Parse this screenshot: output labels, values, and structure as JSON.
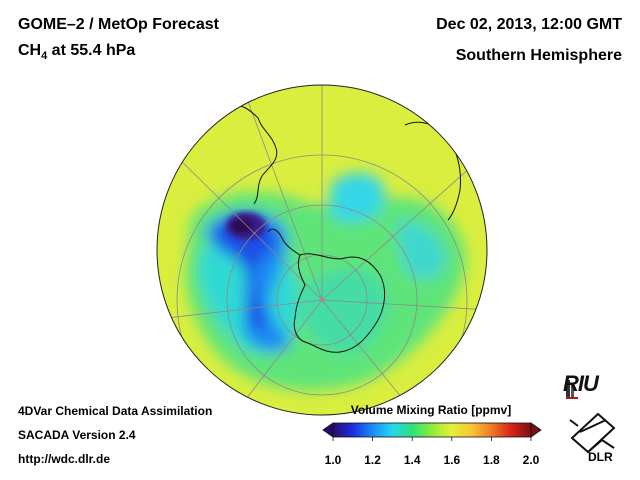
{
  "header": {
    "title": "GOME–2 / MetOp Forecast",
    "species": "CH",
    "species_sub": "4",
    "level": " at 55.4 hPa",
    "datetime": "Dec 02, 2013, 12:00 GMT",
    "region": "Southern Hemisphere"
  },
  "footer": {
    "line1": "4DVar Chemical Data Assimilation",
    "line2": "SACADA Version 2.4",
    "line3": "http://wdc.dlr.de"
  },
  "colorbar": {
    "title": "Volume Mixing Ratio [ppmv]",
    "min": 1.0,
    "max": 2.0,
    "ticks": [
      "1.0",
      "1.2",
      "1.4",
      "1.6",
      "1.8",
      "2.0"
    ],
    "colors": [
      "#2a0a6e",
      "#1c2ee0",
      "#1a8cf5",
      "#28d6ee",
      "#2ee27a",
      "#8fec3a",
      "#e6ef3a",
      "#f7c632",
      "#f07a26",
      "#d8231c",
      "#7a1010"
    ]
  },
  "logos": {
    "riu": "RIU",
    "dlr": "DLR"
  },
  "colors": {
    "background_field": "#d9ee3f",
    "coastline": "#111111",
    "grid": "#8a8a8a"
  }
}
